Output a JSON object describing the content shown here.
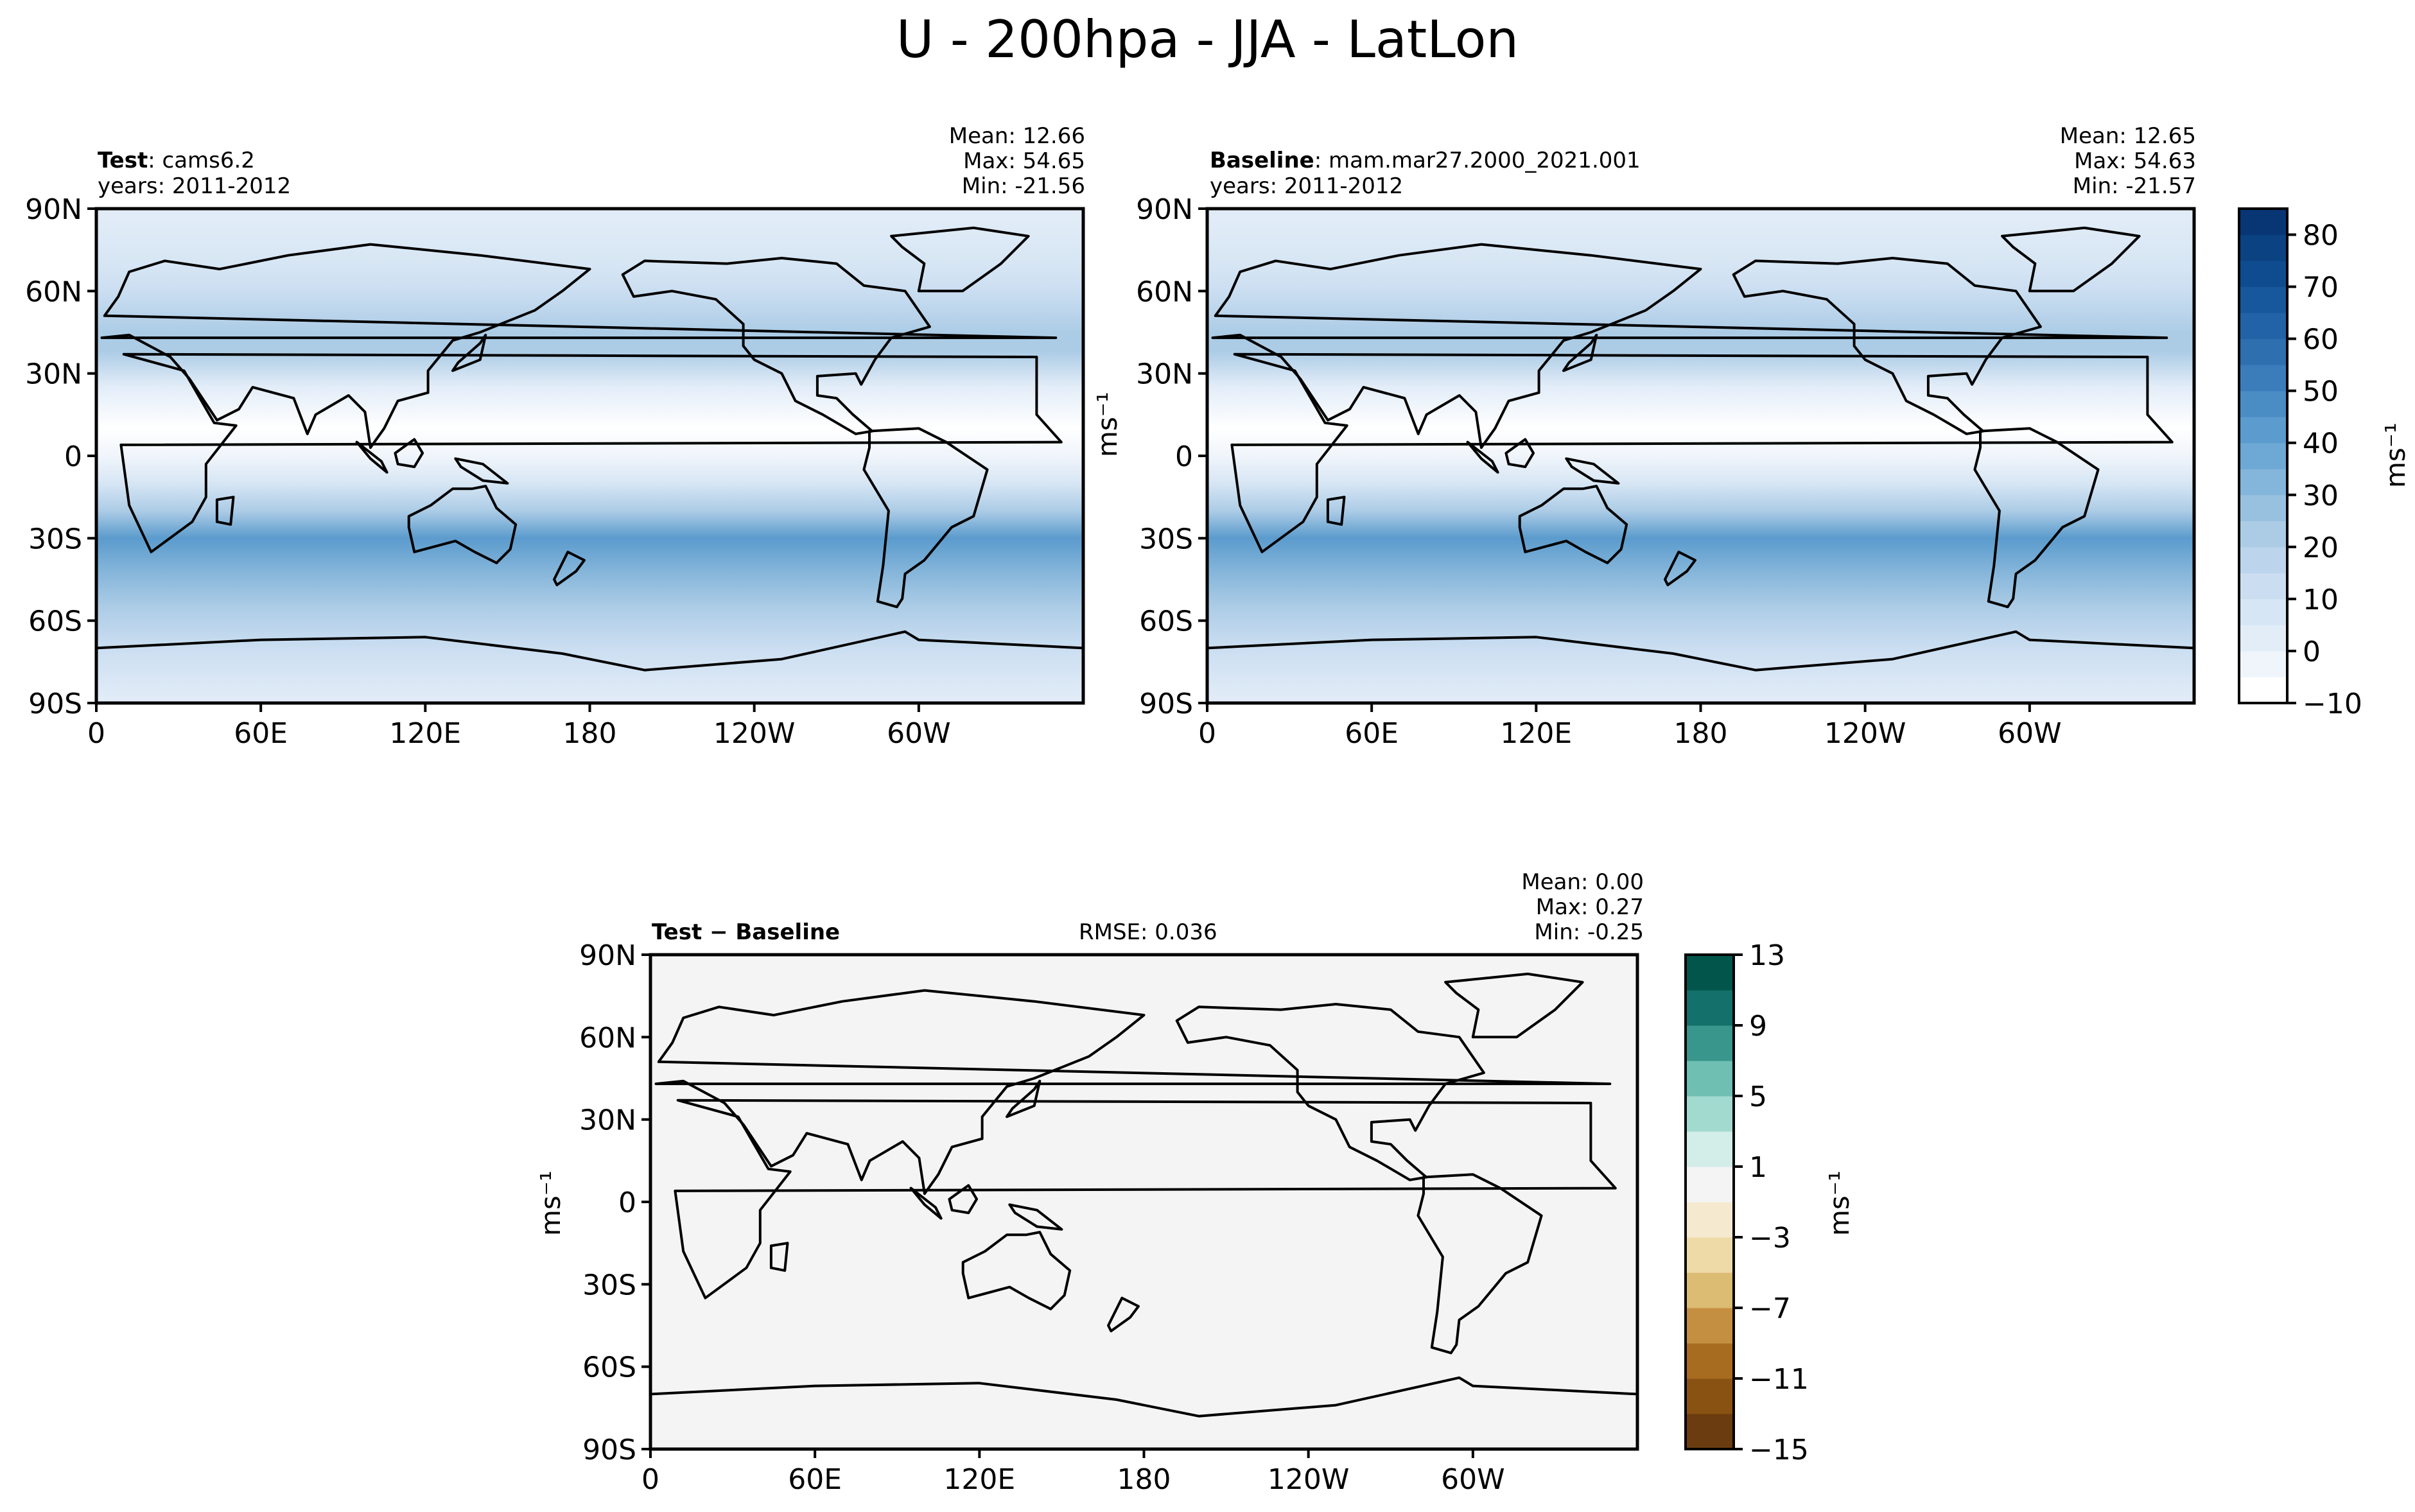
{
  "figure": {
    "title": "U - 200hpa - JJA - LatLon"
  },
  "panels": {
    "test": {
      "name_bold": "Test",
      "name_rest": ": cams6.2",
      "years": "years: 2011-2012",
      "mean": "Mean: 12.66",
      "max": "Max: 54.65",
      "min": "Min: -21.56",
      "ylabel": "ms⁻¹"
    },
    "baseline": {
      "name_bold": "Baseline",
      "name_rest": ": mam.mar27.2000_2021.001",
      "years": "years: 2011-2012",
      "mean": "Mean: 12.65",
      "max": "Max: 54.63",
      "min": "Min: -21.57"
    },
    "diff": {
      "name_bold": "Test − Baseline",
      "rmse": "RMSE: 0.036",
      "mean": "Mean:  0.00",
      "max": "Max:  0.27",
      "min": "Min: -0.25",
      "ylabel": "ms⁻¹"
    }
  },
  "colorbars": {
    "main": {
      "unit": "ms⁻¹",
      "tick_labels": [
        "80",
        "70",
        "60",
        "50",
        "40",
        "30",
        "20",
        "10",
        "0",
        "−10"
      ],
      "tick_values": [
        80,
        70,
        60,
        50,
        40,
        30,
        20,
        10,
        0,
        -10
      ],
      "range": [
        -10,
        85
      ],
      "colors": [
        "#ffffff",
        "#f0f5fb",
        "#e3edf8",
        "#d7e6f4",
        "#cbdef1",
        "#bcd5ec",
        "#acccE6",
        "#98c1df",
        "#84b5da",
        "#6ea8d4",
        "#5b9bcd",
        "#4a8cc4",
        "#3b7dbb",
        "#2e6fb0",
        "#2263a7",
        "#17579c",
        "#0f4c8f",
        "#0b4282",
        "#083674"
      ]
    },
    "diff": {
      "unit": "ms⁻¹",
      "tick_labels": [
        "13",
        "9",
        "5",
        "1",
        "−3",
        "−7",
        "−11",
        "−15"
      ],
      "tick_values": [
        13,
        9,
        5,
        1,
        -3,
        -7,
        -11,
        -15
      ],
      "range": [
        -15,
        13
      ],
      "colors": [
        "#6a3c0f",
        "#8a5212",
        "#a86c21",
        "#c58f42",
        "#dcbb73",
        "#eddaa6",
        "#f5ead0",
        "#f4f4f4",
        "#d3ede8",
        "#a3dad0",
        "#6fbfb2",
        "#38968c",
        "#13706a",
        "#01554a"
      ]
    }
  },
  "chart_data": [
    {
      "type": "heatmap",
      "panel": "Test",
      "variable": "U",
      "level": "200hpa",
      "season": "JJA",
      "xticks": [
        "0",
        "60E",
        "120E",
        "180",
        "120W",
        "60W"
      ],
      "yticks": [
        "90N",
        "60N",
        "30N",
        "0",
        "30S",
        "60S",
        "90S"
      ],
      "xlim": [
        0,
        360
      ],
      "ylim": [
        -90,
        90
      ],
      "stats": {
        "mean": 12.66,
        "max": 54.65,
        "min": -21.56
      },
      "zonal_bands": [
        {
          "lat": 90,
          "u": 2
        },
        {
          "lat": 70,
          "u": 8
        },
        {
          "lat": 60,
          "u": 14
        },
        {
          "lat": 45,
          "u": 22
        },
        {
          "lat": 38,
          "u": 20
        },
        {
          "lat": 25,
          "u": 4
        },
        {
          "lat": 10,
          "u": -6
        },
        {
          "lat": 0,
          "u": -4
        },
        {
          "lat": -10,
          "u": 6
        },
        {
          "lat": -20,
          "u": 24
        },
        {
          "lat": -30,
          "u": 40
        },
        {
          "lat": -42,
          "u": 30
        },
        {
          "lat": -55,
          "u": 24
        },
        {
          "lat": -70,
          "u": 10
        },
        {
          "lat": -90,
          "u": 2
        }
      ]
    },
    {
      "type": "heatmap",
      "panel": "Baseline",
      "variable": "U",
      "level": "200hpa",
      "season": "JJA",
      "xticks": [
        "0",
        "60E",
        "120E",
        "180",
        "120W",
        "60W"
      ],
      "yticks": [
        "90N",
        "60N",
        "30N",
        "0",
        "30S",
        "60S",
        "90S"
      ],
      "xlim": [
        0,
        360
      ],
      "ylim": [
        -90,
        90
      ],
      "stats": {
        "mean": 12.65,
        "max": 54.63,
        "min": -21.57
      },
      "zonal_bands": [
        {
          "lat": 90,
          "u": 2
        },
        {
          "lat": 70,
          "u": 8
        },
        {
          "lat": 60,
          "u": 14
        },
        {
          "lat": 45,
          "u": 22
        },
        {
          "lat": 38,
          "u": 20
        },
        {
          "lat": 25,
          "u": 4
        },
        {
          "lat": 10,
          "u": -6
        },
        {
          "lat": 0,
          "u": -4
        },
        {
          "lat": -10,
          "u": 6
        },
        {
          "lat": -20,
          "u": 24
        },
        {
          "lat": -30,
          "u": 40
        },
        {
          "lat": -42,
          "u": 30
        },
        {
          "lat": -55,
          "u": 24
        },
        {
          "lat": -70,
          "u": 10
        },
        {
          "lat": -90,
          "u": 2
        }
      ]
    },
    {
      "type": "heatmap",
      "panel": "Test - Baseline",
      "xticks": [
        "0",
        "60E",
        "120E",
        "180",
        "120W",
        "60W"
      ],
      "yticks": [
        "90N",
        "60N",
        "30N",
        "0",
        "30S",
        "60S",
        "90S"
      ],
      "xlim": [
        0,
        360
      ],
      "ylim": [
        -90,
        90
      ],
      "stats": {
        "mean": 0.0,
        "max": 0.27,
        "min": -0.25,
        "rmse": 0.036
      },
      "fill_value": 0
    }
  ]
}
